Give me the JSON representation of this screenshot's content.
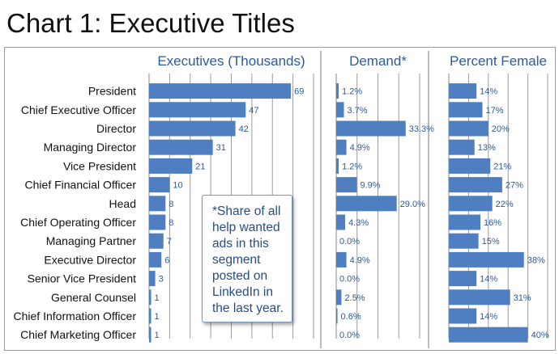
{
  "title": "Chart 1: Executive Titles",
  "note_lines": [
    "*Share of all",
    "help wanted",
    "ads in this",
    "segment",
    "posted on",
    "LinkedIn in",
    "the last year."
  ],
  "colors": {
    "bar": "#4f7fc0",
    "panel_title": "#2d5a9a",
    "value_label": "#2d5a9a",
    "category_label": "#111111",
    "grid": "#9a9a9a"
  },
  "chart_data": [
    {
      "type": "bar",
      "orientation": "horizontal",
      "title": "Executives (Thousands)",
      "categories": [
        "President",
        "Chief Executive Officer",
        "Director",
        "Managing Director",
        "Vice President",
        "Chief Financial Officer",
        "Head",
        "Chief Operating Officer",
        "Managing Partner",
        "Executive Director",
        "Senior Vice President",
        "General Counsel",
        "Chief Information Officer",
        "Chief Marketing Officer"
      ],
      "values": [
        69,
        47,
        42,
        31,
        21,
        10,
        8,
        8,
        7,
        6,
        3,
        1,
        1,
        1
      ],
      "value_labels": [
        "69",
        "47",
        "42",
        "31",
        "21",
        "10",
        "8",
        "8",
        "7",
        "6",
        "3",
        "1",
        "1",
        "1"
      ],
      "xlim": [
        0,
        80
      ],
      "grid": true
    },
    {
      "type": "bar",
      "orientation": "horizontal",
      "title": "Demand*",
      "categories": [
        "President",
        "Chief Executive Officer",
        "Director",
        "Managing Director",
        "Vice President",
        "Chief Financial Officer",
        "Head",
        "Chief Operating Officer",
        "Managing Partner",
        "Executive Director",
        "Senior Vice President",
        "General Counsel",
        "Chief Information Officer",
        "Chief Marketing Officer"
      ],
      "values": [
        1.2,
        3.7,
        33.3,
        4.9,
        1.2,
        9.9,
        29.0,
        4.3,
        0.0,
        4.9,
        0.0,
        2.5,
        0.6,
        0.0
      ],
      "value_labels": [
        "1.2%",
        "3.7%",
        "33.3%",
        "4.9%",
        "1.2%",
        "9.9%",
        "29.0%",
        "4.3%",
        "0.0%",
        "4.9%",
        "0.0%",
        "2.5%",
        "0.6%",
        "0.0%"
      ],
      "xlim": [
        0,
        40
      ],
      "grid": true
    },
    {
      "type": "bar",
      "orientation": "horizontal",
      "title": "Percent Female",
      "categories": [
        "President",
        "Chief Executive Officer",
        "Director",
        "Managing Director",
        "Vice President",
        "Chief Financial Officer",
        "Head",
        "Chief Operating Officer",
        "Managing Partner",
        "Executive Director",
        "Senior Vice President",
        "General Counsel",
        "Chief Information Officer",
        "Chief Marketing Officer"
      ],
      "values": [
        14,
        17,
        20,
        13,
        21,
        27,
        22,
        16,
        15,
        38,
        14,
        31,
        14,
        40
      ],
      "value_labels": [
        "14%",
        "17%",
        "20%",
        "13%",
        "21%",
        "27%",
        "22%",
        "16%",
        "15%",
        "38%",
        "14%",
        "31%",
        "14%",
        "40%"
      ],
      "xlim": [
        0,
        50
      ],
      "grid": true
    }
  ]
}
